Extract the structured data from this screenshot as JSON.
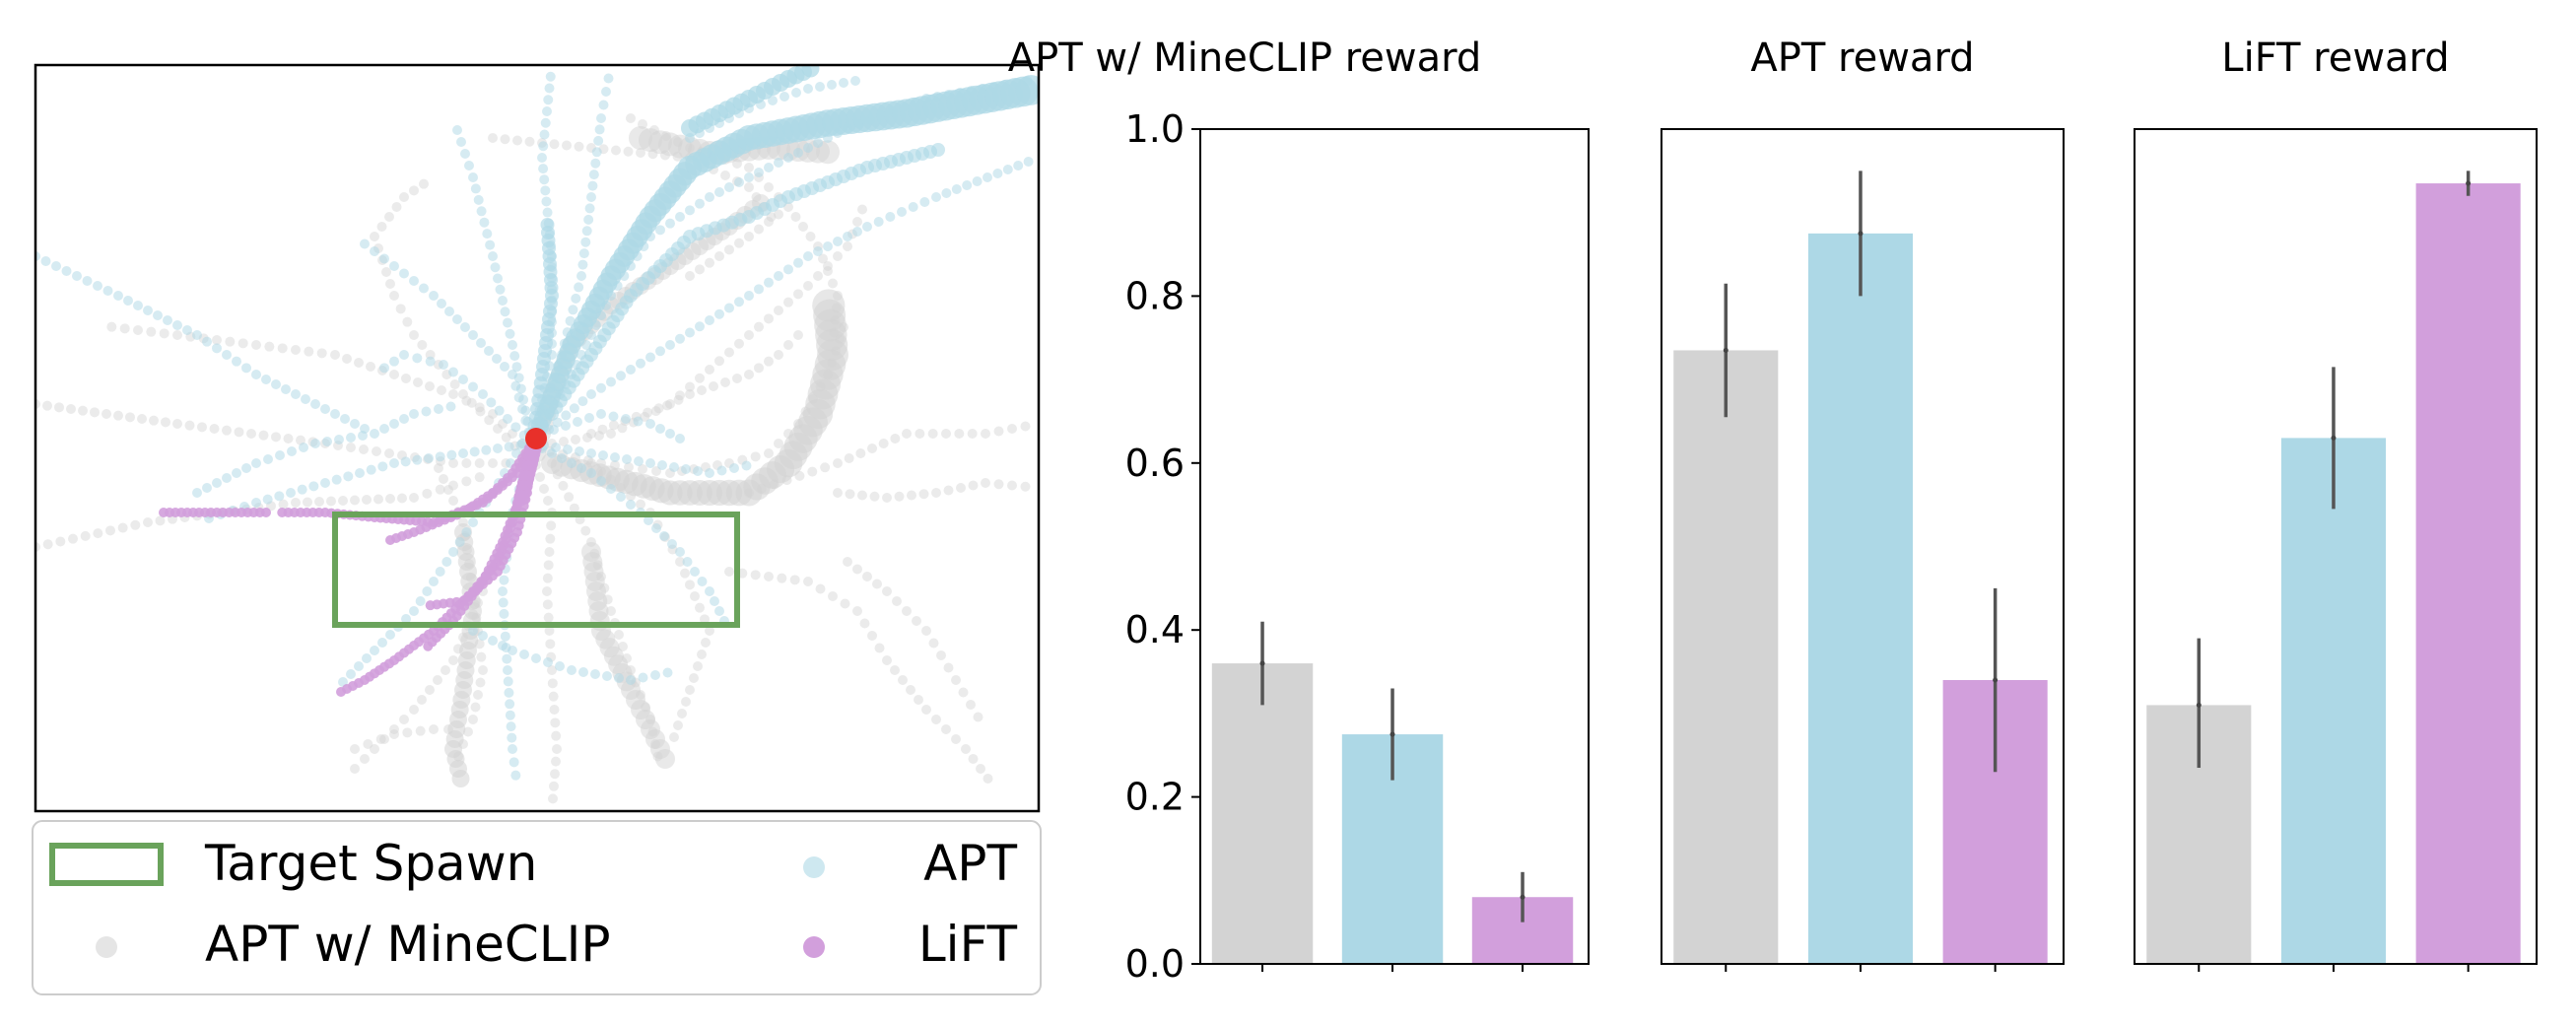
{
  "legend": {
    "target_spawn": "Target Spawn",
    "apt": "APT",
    "apt_mineclip": "APT w/ MineCLIP",
    "lift": "LiFT"
  },
  "colors": {
    "apt": "#add8e6",
    "apt_mineclip": "#d3d3d3",
    "lift": "#d29fdc",
    "target_spawn": "#6aa35b",
    "start_marker": "#e8302a",
    "error_bar": "#555555"
  },
  "chart_data": [
    {
      "type": "scatter",
      "description_of_series": [
        "APT",
        "APT w/ MineCLIP",
        "LiFT"
      ],
      "series": [
        {
          "name": "APT"
        },
        {
          "name": "APT w/ MineCLIP"
        },
        {
          "name": "LiFT"
        }
      ],
      "target_region_label": "Target Spawn",
      "axes_visible": false,
      "grid": false,
      "legend_position": "below"
    },
    {
      "type": "bar",
      "title": "APT w/ MineCLIP reward",
      "categories": [
        "APT w/ MineCLIP",
        "APT",
        "LiFT"
      ],
      "values": [
        0.36,
        0.275,
        0.08
      ],
      "errors": [
        [
          0.31,
          0.41
        ],
        [
          0.22,
          0.33
        ],
        [
          0.05,
          0.11
        ]
      ],
      "ylim": [
        0,
        1.0
      ],
      "yticks": [
        "0.0",
        "0.2",
        "0.4",
        "0.6",
        "0.8",
        "1.0"
      ],
      "grid": false
    },
    {
      "type": "bar",
      "title": "APT reward",
      "categories": [
        "APT w/ MineCLIP",
        "APT",
        "LiFT"
      ],
      "values": [
        0.735,
        0.875,
        0.34
      ],
      "errors": [
        [
          0.655,
          0.815
        ],
        [
          0.8,
          0.95
        ],
        [
          0.23,
          0.45
        ]
      ],
      "ylim": [
        0,
        1.0
      ],
      "grid": false
    },
    {
      "type": "bar",
      "title": "LiFT reward",
      "categories": [
        "APT w/ MineCLIP",
        "APT",
        "LiFT"
      ],
      "values": [
        0.31,
        0.63,
        0.935
      ],
      "errors": [
        [
          0.235,
          0.39
        ],
        [
          0.545,
          0.715
        ],
        [
          0.92,
          0.95
        ]
      ],
      "ylim": [
        0,
        1.0
      ],
      "grid": false
    }
  ]
}
